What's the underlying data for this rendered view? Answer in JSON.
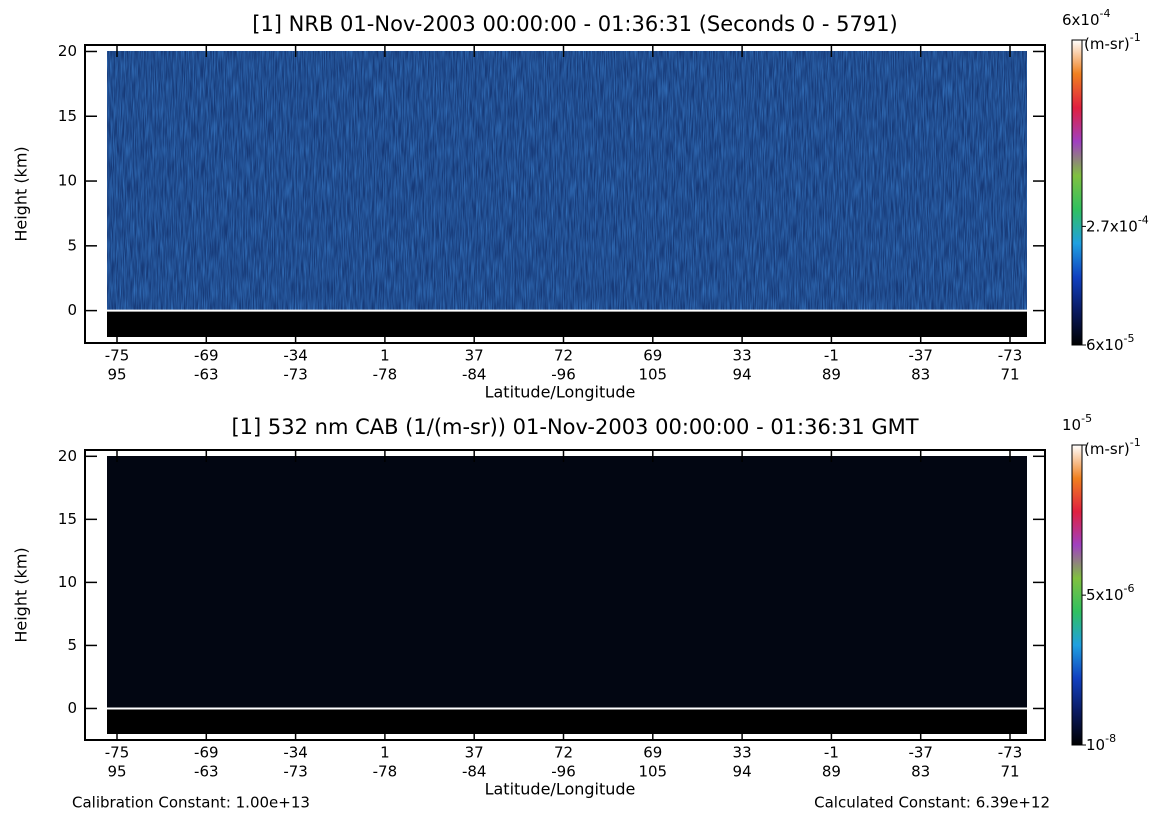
{
  "chart_data": [
    {
      "type": "heatmap",
      "title": "[1]  NRB 01-Nov-2003 00:00:00 - 01:36:31 (Seconds 0 - 5791)",
      "y_label": "Height (km)",
      "x_label": "Latitude/Longitude",
      "latitude_ticks": [
        -75,
        -69,
        -34,
        1,
        37,
        72,
        69,
        33,
        -1,
        -37,
        -73
      ],
      "longitude_ticks": [
        95,
        -63,
        -73,
        -78,
        -84,
        -96,
        105,
        94,
        89,
        83,
        71
      ],
      "ylim": [
        -2.5,
        20.5
      ],
      "yticks": [
        0,
        5,
        10,
        15,
        20
      ],
      "background_color": "#173a78",
      "colormap": [
        "#000000",
        "#0a1a60",
        "#1040c0",
        "#20a0e0",
        "#30c060",
        "#80c040",
        "#a040c0",
        "#e02040",
        "#f08020",
        "#ffffff"
      ],
      "colorbar_unit": {
        "label": "(m-sr)",
        "exponent": "-1"
      },
      "clim": [
        6e-05,
        0.0006
      ],
      "colorbar_ticks": [
        {
          "value": 0.0006,
          "label": "6x10",
          "exponent": "-4"
        },
        {
          "value": 0.00027,
          "label": "2.7x10",
          "exponent": "-4"
        },
        {
          "value": 6e-05,
          "label": "6x10",
          "exponent": "-5"
        }
      ]
    },
    {
      "type": "heatmap",
      "title": "[1]  532 nm CAB (1/(m-sr)) 01-Nov-2003 00:00:00 - 01:36:31 GMT",
      "y_label": "Height (km)",
      "x_label": "Latitude/Longitude",
      "latitude_ticks": [
        -75,
        -69,
        -34,
        1,
        37,
        72,
        69,
        33,
        -1,
        -37,
        -73
      ],
      "longitude_ticks": [
        95,
        -63,
        -73,
        -78,
        -84,
        -96,
        105,
        94,
        89,
        83,
        71
      ],
      "ylim": [
        -2.5,
        20.5
      ],
      "yticks": [
        0,
        5,
        10,
        15,
        20
      ],
      "background_color": "#020612",
      "colormap": [
        "#000000",
        "#0a1a60",
        "#1040c0",
        "#20a0e0",
        "#30c060",
        "#80c040",
        "#a040c0",
        "#e02040",
        "#f08020",
        "#ffffff"
      ],
      "colorbar_unit": {
        "label": "(m-sr)",
        "exponent": "-1"
      },
      "clim": [
        1e-08,
        1e-05
      ],
      "colorbar_ticks": [
        {
          "value": 1e-05,
          "label": "10",
          "exponent": "-5"
        },
        {
          "value": 5e-06,
          "label": "5x10",
          "exponent": "-6"
        },
        {
          "value": 1e-08,
          "label": "10",
          "exponent": "-8"
        }
      ],
      "footnotes": [
        "Calibration Constant: 1.00e+13",
        "Calculated Constant: 6.39e+12"
      ]
    }
  ]
}
